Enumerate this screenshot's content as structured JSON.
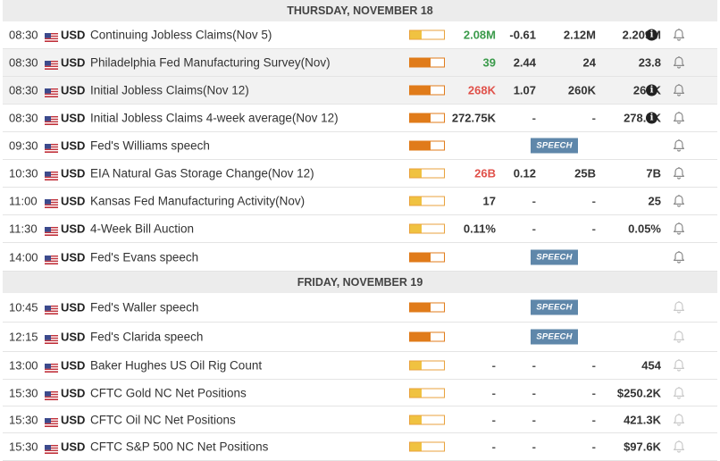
{
  "days": [
    {
      "header": "THURSDAY, NOVEMBER 18",
      "events": [
        {
          "time": "08:30",
          "currency": "USD",
          "title": "Continuing Jobless Claims(Nov 5)",
          "impact": "low",
          "actual": "2.08M",
          "actual_color": "green",
          "deviation": "-0.61",
          "consensus": "2.12M",
          "previous": "2.209M",
          "revised": true,
          "speech": false
        },
        {
          "time": "08:30",
          "currency": "USD",
          "title": "Philadelphia Fed Manufacturing Survey(Nov)",
          "impact": "high",
          "actual": "39",
          "actual_color": "green",
          "deviation": "2.44",
          "consensus": "24",
          "previous": "23.8",
          "revised": false,
          "speech": false
        },
        {
          "time": "08:30",
          "currency": "USD",
          "title": "Initial Jobless Claims(Nov 12)",
          "impact": "high",
          "actual": "268K",
          "actual_color": "red",
          "deviation": "1.07",
          "consensus": "260K",
          "previous": "269K",
          "revised": true,
          "speech": false
        },
        {
          "time": "08:30",
          "currency": "USD",
          "title": "Initial Jobless Claims 4-week average(Nov 12)",
          "impact": "high",
          "actual": "272.75K",
          "actual_color": "neutral",
          "deviation": "-",
          "consensus": "-",
          "previous": "278.5K",
          "revised": true,
          "speech": false
        },
        {
          "time": "09:30",
          "currency": "USD",
          "title": "Fed's Williams speech",
          "impact": "high",
          "actual": "",
          "actual_color": "neutral",
          "deviation": "",
          "consensus": "",
          "previous": "",
          "revised": false,
          "speech": true
        },
        {
          "time": "10:30",
          "currency": "USD",
          "title": "EIA Natural Gas Storage Change(Nov 12)",
          "impact": "low",
          "actual": "26B",
          "actual_color": "red",
          "deviation": "0.12",
          "consensus": "25B",
          "previous": "7B",
          "revised": false,
          "speech": false
        },
        {
          "time": "11:00",
          "currency": "USD",
          "title": "Kansas Fed Manufacturing Activity(Nov)",
          "impact": "low",
          "actual": "17",
          "actual_color": "neutral",
          "deviation": "-",
          "consensus": "-",
          "previous": "25",
          "revised": false,
          "speech": false
        },
        {
          "time": "11:30",
          "currency": "USD",
          "title": "4-Week Bill Auction",
          "impact": "low",
          "actual": "0.11%",
          "actual_color": "neutral",
          "deviation": "-",
          "consensus": "-",
          "previous": "0.05%",
          "revised": false,
          "speech": false
        },
        {
          "time": "14:00",
          "currency": "USD",
          "title": "Fed's Evans speech",
          "impact": "high",
          "actual": "",
          "actual_color": "neutral",
          "deviation": "",
          "consensus": "",
          "previous": "",
          "revised": false,
          "speech": true
        }
      ]
    },
    {
      "header": "FRIDAY, NOVEMBER 19",
      "events": [
        {
          "time": "10:45",
          "currency": "USD",
          "title": "Fed's Waller speech",
          "impact": "high",
          "actual": "",
          "actual_color": "neutral",
          "deviation": "",
          "consensus": "",
          "previous": "",
          "revised": false,
          "speech": true
        },
        {
          "time": "12:15",
          "currency": "USD",
          "title": "Fed's Clarida speech",
          "impact": "high",
          "actual": "",
          "actual_color": "neutral",
          "deviation": "",
          "consensus": "",
          "previous": "",
          "revised": false,
          "speech": true
        },
        {
          "time": "13:00",
          "currency": "USD",
          "title": "Baker Hughes US Oil Rig Count",
          "impact": "low",
          "actual": "-",
          "actual_color": "neutral",
          "deviation": "-",
          "consensus": "-",
          "previous": "454",
          "revised": false,
          "speech": false
        },
        {
          "time": "15:30",
          "currency": "USD",
          "title": "CFTC Gold NC Net Positions",
          "impact": "low",
          "actual": "-",
          "actual_color": "neutral",
          "deviation": "-",
          "consensus": "-",
          "previous": "$250.2K",
          "revised": false,
          "speech": false
        },
        {
          "time": "15:30",
          "currency": "USD",
          "title": "CFTC Oil NC Net Positions",
          "impact": "low",
          "actual": "-",
          "actual_color": "neutral",
          "deviation": "-",
          "consensus": "-",
          "previous": "421.3K",
          "revised": false,
          "speech": false
        },
        {
          "time": "15:30",
          "currency": "USD",
          "title": "CFTC S&P 500 NC Net Positions",
          "impact": "low",
          "actual": "-",
          "actual_color": "neutral",
          "deviation": "-",
          "consensus": "-",
          "previous": "$97.6K",
          "revised": false,
          "speech": false
        }
      ]
    }
  ],
  "speech_label": "SPEECH",
  "revised_icon": "info-icon",
  "reminder_icon": "bell-icon",
  "flag_icon": "us-flag-icon",
  "impact_levels": {
    "low": 0.35,
    "high": 0.6
  },
  "colors": {
    "green": "#3a9a4a",
    "red": "#e0514a",
    "speech_badge": "#5f87aa",
    "impact_high": "#e07b1a",
    "impact_low": "#f0c241"
  }
}
